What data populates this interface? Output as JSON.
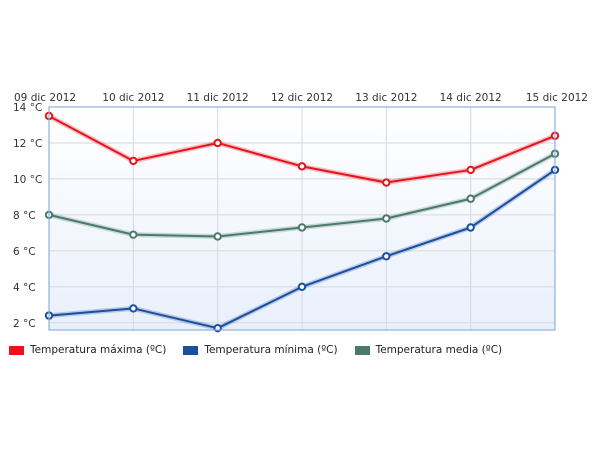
{
  "chart_data": {
    "type": "line",
    "title": "",
    "xlabel": "",
    "ylabel": "",
    "categories": [
      "09 dic 2012",
      "10 dic 2012",
      "11 dic 2012",
      "12 dic 2012",
      "13 dic 2012",
      "14 dic 2012",
      "15 dic 2012"
    ],
    "y_ticks": [
      "2 °C",
      "4 °C",
      "6 °C",
      "8 °C",
      "10 °C",
      "12 °C",
      "14 °C"
    ],
    "y_tick_values": [
      2,
      4,
      6,
      8,
      10,
      12,
      14
    ],
    "ylim": [
      1.6,
      14
    ],
    "grid": true,
    "legend_position": "bottom-left",
    "series": [
      {
        "name": "Temperatura máxima (ºC)",
        "color": "#e8131b",
        "values": [
          13.5,
          11.0,
          12.0,
          10.7,
          9.8,
          10.5,
          12.4
        ]
      },
      {
        "name": "Temperatura mínima (ºC)",
        "color": "#1a4fa0",
        "values": [
          2.4,
          2.8,
          1.7,
          4.0,
          5.7,
          7.3,
          10.5
        ]
      },
      {
        "name": "Temperatura media (ºC)",
        "color": "#4a7a6b",
        "values": [
          8.0,
          6.9,
          6.8,
          7.3,
          7.8,
          8.9,
          11.4
        ]
      }
    ]
  }
}
